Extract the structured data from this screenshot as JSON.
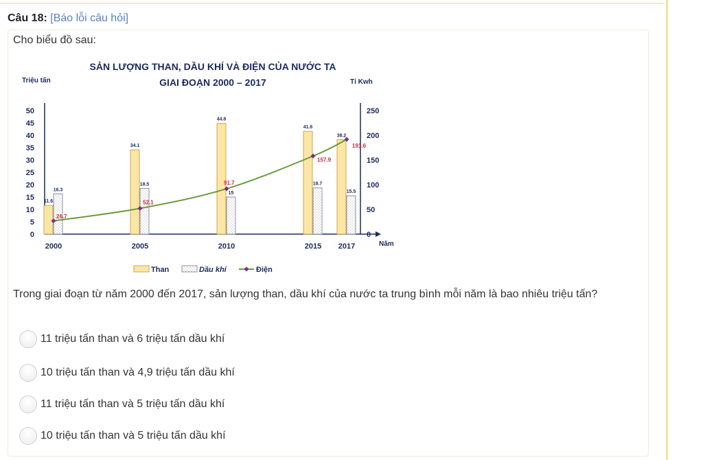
{
  "question": {
    "number_label": "Câu 18:",
    "report_link": "[Báo lỗi câu hỏi]",
    "intro": "Cho biểu đồ sau:",
    "text": "Trong giai đoạn từ năm 2000 đến 2017, sản lượng than, dầu khí của nước ta trung bình mỗi năm là bao nhiêu triệu tấn?",
    "options": [
      "11 triệu tấn than và 6 triệu tấn dầu khí",
      "10 triệu tấn than và 4,9 triệu tấn dầu khí",
      "11 triệu tấn than và 5 triệu tấn dầu khí",
      "10 triệu tấn than và 5 triệu tấn dầu khí"
    ]
  },
  "colors": {
    "than": "#fbe6a6",
    "than_border": "#c9a94f",
    "dau_khi": "#ffffff",
    "dien": "#6a9a3a",
    "dien_marker": "#7b2c8e",
    "dien_label": "#d6243b",
    "title": "#1b2a5e"
  },
  "chart_data": {
    "type": "bar",
    "title_line1": "SẢN LƯỢNG THAN, DẦU KHÍ VÀ ĐIỆN CỦA NƯỚC TA",
    "title_line2": "GIAI ĐOẠN 2000 – 2017",
    "ylabel_left": "Triệu tấn",
    "ylabel_right": "Tỉ Kwh",
    "xlabel": "Năm",
    "categories": [
      "2000",
      "2005",
      "2010",
      "2015",
      "2017"
    ],
    "y_left_ticks": [
      "0",
      "5",
      "10",
      "15",
      "20",
      "25",
      "30",
      "35",
      "40",
      "45",
      "50"
    ],
    "y_right_ticks": [
      "0",
      "50",
      "100",
      "150",
      "200",
      "250"
    ],
    "ylim_left": [
      0,
      50
    ],
    "ylim_right": [
      0,
      250
    ],
    "series": [
      {
        "name": "Than",
        "type": "bar",
        "axis": "left",
        "values": [
          11.6,
          34.1,
          44.8,
          41.6,
          38.2
        ],
        "labels": [
          "11.6",
          "34.1",
          "44.8",
          "41.6",
          "38.2"
        ]
      },
      {
        "name": "Dầu khí",
        "type": "bar",
        "axis": "left",
        "values": [
          16.3,
          18.5,
          15,
          18.7,
          15.5
        ],
        "labels": [
          "16.3",
          "18.5",
          "15",
          "18.7",
          "15.5"
        ]
      },
      {
        "name": "Điện",
        "type": "line",
        "axis": "right",
        "values": [
          26.7,
          52.1,
          91.7,
          157.9,
          191.6
        ],
        "labels": [
          "26.7",
          "52.1",
          "91.7",
          "157.9",
          "191.6"
        ]
      }
    ],
    "legend": [
      "Than",
      "Dầu khí",
      "Điện"
    ],
    "legend_position": "bottom-center",
    "grid": false
  }
}
